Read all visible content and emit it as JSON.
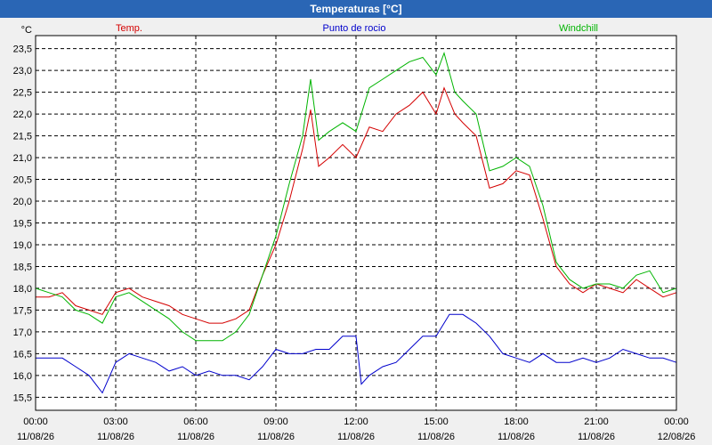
{
  "window": {
    "title": "Temperaturas [°C]"
  },
  "colors": {
    "temp": "#d40000",
    "dew": "#0000cc",
    "windchill": "#00b400",
    "grid": "#000000"
  },
  "chart_data": {
    "type": "line",
    "title": "Temperaturas [°C]",
    "ylabel": "°C",
    "xlim": [
      0,
      24
    ],
    "ylim": [
      15.2,
      23.8
    ],
    "grid": true,
    "legend": "top",
    "yticks": [
      "15,5",
      "16,0",
      "16,5",
      "17,0",
      "17,5",
      "18,0",
      "18,5",
      "19,0",
      "19,5",
      "20,0",
      "20,5",
      "21,0",
      "21,5",
      "22,0",
      "22,5",
      "23,0",
      "23,5"
    ],
    "ytick_values": [
      15.5,
      16.0,
      16.5,
      17.0,
      17.5,
      18.0,
      18.5,
      19.0,
      19.5,
      20.0,
      20.5,
      21.0,
      21.5,
      22.0,
      22.5,
      23.0,
      23.5
    ],
    "xticks": [
      {
        "time": "00:00",
        "date": "11/08/26"
      },
      {
        "time": "03:00",
        "date": "11/08/26"
      },
      {
        "time": "06:00",
        "date": "11/08/26"
      },
      {
        "time": "09:00",
        "date": "11/08/26"
      },
      {
        "time": "12:00",
        "date": "11/08/26"
      },
      {
        "time": "15:00",
        "date": "11/08/26"
      },
      {
        "time": "18:00",
        "date": "11/08/26"
      },
      {
        "time": "21:00",
        "date": "11/08/26"
      },
      {
        "time": "00:00",
        "date": "12/08/26"
      }
    ],
    "xtick_values": [
      0,
      3,
      6,
      9,
      12,
      15,
      18,
      21,
      24
    ],
    "series": [
      {
        "name": "Temp.",
        "color": "#d40000",
        "x": [
          0,
          0.5,
          1,
          1.5,
          2,
          2.5,
          3,
          3.5,
          4,
          4.5,
          5,
          5.5,
          6,
          6.5,
          7,
          7.5,
          8,
          8.5,
          9,
          9.5,
          10,
          10.3,
          10.6,
          11,
          11.5,
          12,
          12.5,
          13,
          13.5,
          14,
          14.5,
          15,
          15.3,
          15.7,
          16,
          16.5,
          17,
          17.5,
          18,
          18.5,
          19,
          19.5,
          20,
          20.5,
          21,
          21.5,
          22,
          22.5,
          23,
          23.5,
          24
        ],
        "values": [
          17.8,
          17.8,
          17.9,
          17.6,
          17.5,
          17.4,
          17.9,
          18.0,
          17.8,
          17.7,
          17.6,
          17.4,
          17.3,
          17.2,
          17.2,
          17.3,
          17.5,
          18.3,
          19.0,
          20.0,
          21.2,
          22.1,
          20.8,
          21.0,
          21.3,
          21.0,
          21.7,
          21.6,
          22.0,
          22.2,
          22.5,
          22.0,
          22.6,
          22.0,
          21.8,
          21.5,
          20.3,
          20.4,
          20.7,
          20.6,
          19.6,
          18.5,
          18.1,
          17.9,
          18.1,
          18.0,
          17.9,
          18.2,
          18.0,
          17.8,
          17.9
        ]
      },
      {
        "name": "Punto de rocio",
        "color": "#0000cc",
        "x": [
          0,
          0.5,
          1,
          1.5,
          2,
          2.5,
          3,
          3.5,
          4,
          4.5,
          5,
          5.5,
          6,
          6.5,
          7,
          7.5,
          8,
          8.5,
          9,
          9.5,
          10,
          10.5,
          11,
          11.5,
          12,
          12.2,
          12.5,
          13,
          13.5,
          14,
          14.5,
          15,
          15.5,
          16,
          16.5,
          17,
          17.5,
          18,
          18.5,
          19,
          19.5,
          20,
          20.5,
          21,
          21.5,
          22,
          22.5,
          23,
          23.5,
          24
        ],
        "values": [
          16.4,
          16.4,
          16.4,
          16.2,
          16.0,
          15.6,
          16.3,
          16.5,
          16.4,
          16.3,
          16.1,
          16.2,
          16.0,
          16.1,
          16.0,
          16.0,
          15.9,
          16.2,
          16.6,
          16.5,
          16.5,
          16.6,
          16.6,
          16.9,
          16.9,
          15.8,
          16.0,
          16.2,
          16.3,
          16.6,
          16.9,
          16.9,
          17.4,
          17.4,
          17.2,
          16.9,
          16.5,
          16.4,
          16.3,
          16.5,
          16.3,
          16.3,
          16.4,
          16.3,
          16.4,
          16.6,
          16.5,
          16.4,
          16.4,
          16.3
        ]
      },
      {
        "name": "Windchill",
        "color": "#00b400",
        "x": [
          0,
          0.5,
          1,
          1.5,
          2,
          2.5,
          3,
          3.5,
          4,
          4.5,
          5,
          5.5,
          6,
          6.5,
          7,
          7.5,
          8,
          8.5,
          9,
          9.5,
          10,
          10.3,
          10.6,
          11,
          11.5,
          12,
          12.5,
          13,
          13.5,
          14,
          14.5,
          15,
          15.3,
          15.7,
          16,
          16.5,
          17,
          17.5,
          18,
          18.5,
          19,
          19.5,
          20,
          20.5,
          21,
          21.5,
          22,
          22.5,
          23,
          23.5,
          24
        ],
        "values": [
          18.0,
          17.9,
          17.8,
          17.5,
          17.4,
          17.2,
          17.8,
          17.9,
          17.7,
          17.5,
          17.3,
          17.0,
          16.8,
          16.8,
          16.8,
          17.0,
          17.4,
          18.3,
          19.2,
          20.4,
          21.5,
          22.8,
          21.4,
          21.6,
          21.8,
          21.6,
          22.6,
          22.8,
          23.0,
          23.2,
          23.3,
          22.9,
          23.4,
          22.5,
          22.3,
          22.0,
          20.7,
          20.8,
          21.0,
          20.8,
          19.9,
          18.6,
          18.2,
          18.0,
          18.1,
          18.1,
          18.0,
          18.3,
          18.4,
          17.9,
          18.0
        ]
      }
    ]
  }
}
